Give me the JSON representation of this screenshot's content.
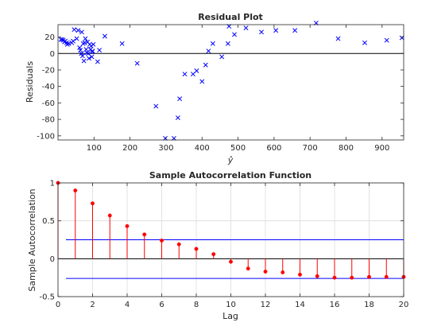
{
  "chart_data": [
    {
      "type": "scatter",
      "title": "Residual Plot",
      "xlabel": "ŷ",
      "ylabel": "Residuals",
      "xlim": [
        0,
        960
      ],
      "ylim": [
        -105,
        35
      ],
      "xticks": [
        100,
        200,
        300,
        400,
        500,
        600,
        700,
        800,
        900
      ],
      "yticks": [
        -100,
        -80,
        -60,
        -40,
        -20,
        0,
        20
      ],
      "reference_line": 0,
      "marker": "x",
      "color": "#0000ff",
      "grid": false,
      "points": [
        [
          8,
          17
        ],
        [
          12,
          17
        ],
        [
          15,
          16
        ],
        [
          18,
          14
        ],
        [
          20,
          15
        ],
        [
          24,
          13
        ],
        [
          26,
          11
        ],
        [
          30,
          12
        ],
        [
          38,
          13
        ],
        [
          42,
          15
        ],
        [
          45,
          29
        ],
        [
          52,
          18
        ],
        [
          56,
          28
        ],
        [
          60,
          7
        ],
        [
          62,
          4
        ],
        [
          65,
          0
        ],
        [
          66,
          26
        ],
        [
          68,
          -3
        ],
        [
          70,
          12
        ],
        [
          72,
          -9
        ],
        [
          74,
          13
        ],
        [
          76,
          18
        ],
        [
          78,
          5
        ],
        [
          80,
          1
        ],
        [
          82,
          14
        ],
        [
          84,
          0
        ],
        [
          86,
          -6
        ],
        [
          88,
          11
        ],
        [
          90,
          5
        ],
        [
          92,
          9
        ],
        [
          94,
          -4
        ],
        [
          95,
          2
        ],
        [
          96,
          3
        ],
        [
          98,
          11
        ],
        [
          110,
          -10
        ],
        [
          115,
          4
        ],
        [
          130,
          21
        ],
        [
          178,
          12
        ],
        [
          220,
          -12
        ],
        [
          272,
          -64
        ],
        [
          298,
          -103
        ],
        [
          322,
          -103
        ],
        [
          333,
          -78
        ],
        [
          338,
          -55
        ],
        [
          352,
          -25
        ],
        [
          375,
          -25
        ],
        [
          385,
          -21
        ],
        [
          400,
          -34
        ],
        [
          410,
          -14
        ],
        [
          418,
          3
        ],
        [
          430,
          12
        ],
        [
          455,
          -4
        ],
        [
          472,
          12
        ],
        [
          475,
          33
        ],
        [
          490,
          23
        ],
        [
          522,
          31
        ],
        [
          565,
          26
        ],
        [
          605,
          28
        ],
        [
          658,
          28
        ],
        [
          717,
          37
        ],
        [
          778,
          18
        ],
        [
          852,
          13
        ],
        [
          913,
          16
        ],
        [
          955,
          19
        ]
      ]
    },
    {
      "type": "stem",
      "title": "Sample Autocorrelation Function",
      "xlabel": "Lag",
      "ylabel": "Sample Autocorrelation",
      "xlim": [
        0,
        20
      ],
      "ylim": [
        -0.5,
        1
      ],
      "xticks": [
        0,
        2,
        4,
        6,
        8,
        10,
        12,
        14,
        16,
        18,
        20
      ],
      "yticks": [
        -0.5,
        0,
        0.5,
        1
      ],
      "grid": true,
      "color": "#ff0000",
      "confidence_bounds": [
        0.25,
        -0.26
      ],
      "bounds_color": "#0000ff",
      "lags": [
        0,
        1,
        2,
        3,
        4,
        5,
        6,
        7,
        8,
        9,
        10,
        11,
        12,
        13,
        14,
        15,
        16,
        17,
        18,
        19,
        20
      ],
      "values": [
        1.0,
        0.9,
        0.73,
        0.57,
        0.43,
        0.32,
        0.24,
        0.19,
        0.13,
        0.06,
        -0.04,
        -0.13,
        -0.17,
        -0.18,
        -0.21,
        -0.23,
        -0.25,
        -0.25,
        -0.24,
        -0.24,
        -0.24
      ]
    }
  ]
}
